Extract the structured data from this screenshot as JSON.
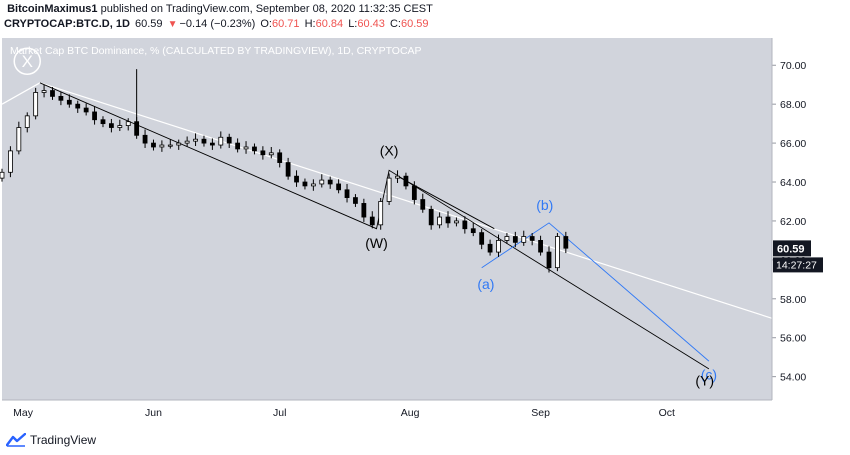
{
  "header": {
    "author": "BitcoinMaximus1",
    "published": "published on TradingView.com, September 08, 2020 11:32:35 CEST",
    "symbol": "CRYPTOCAP:BTC.D, 1D",
    "price": "60.59",
    "change_icon": "down-triangle",
    "change": "−0.14 (−0.23%)",
    "open_label": "O:",
    "open": "60.71",
    "high_label": "H:",
    "high": "60.84",
    "low_label": "L:",
    "low": "60.43",
    "close_label": "C:",
    "close": "60.59"
  },
  "footer": {
    "brand": "TradingView",
    "logo_icon": "tradingview-logo-icon"
  },
  "colors": {
    "plot_bg": "#d1d4dc",
    "candle": "#000000",
    "wave_black": "#000000",
    "wave_blue": "#3179f5",
    "trend_white": "#ffffff",
    "price_label_bg": "#131722",
    "header_red": "#ef5350"
  },
  "chart_data": {
    "type": "candlestick",
    "title": "Market Cap BTC Dominance, % (CALCULATED BY TRADINGVIEW), 1D, CRYPTOCAP",
    "xlabel": "",
    "ylabel": "",
    "y_axis_side": "right",
    "ylim": [
      52.8,
      71.4
    ],
    "y_ticks": [
      "70.00",
      "68.00",
      "66.00",
      "64.00",
      "62.00",
      "60.00",
      "58.00",
      "56.00",
      "54.00"
    ],
    "x_ticks": [
      "May",
      "Jun",
      "Jul",
      "Aug",
      "Sep",
      "Oct"
    ],
    "x_range": [
      "2020-04-26",
      "2020-10-26"
    ],
    "current_price_label": "60.59",
    "countdown_label": "14:27:27",
    "grid": false,
    "close_series": {
      "x": [
        "2020-04-26",
        "2020-04-28",
        "2020-04-30",
        "2020-05-02",
        "2020-05-04",
        "2020-05-06",
        "2020-05-08",
        "2020-05-10",
        "2020-05-12",
        "2020-05-14",
        "2020-05-16",
        "2020-05-18",
        "2020-05-20",
        "2020-05-22",
        "2020-05-24",
        "2020-05-26",
        "2020-05-28",
        "2020-05-30",
        "2020-06-01",
        "2020-06-03",
        "2020-06-05",
        "2020-06-07",
        "2020-06-09",
        "2020-06-11",
        "2020-06-13",
        "2020-06-15",
        "2020-06-17",
        "2020-06-19",
        "2020-06-21",
        "2020-06-23",
        "2020-06-25",
        "2020-06-27",
        "2020-06-29",
        "2020-07-01",
        "2020-07-03",
        "2020-07-05",
        "2020-07-07",
        "2020-07-09",
        "2020-07-11",
        "2020-07-13",
        "2020-07-15",
        "2020-07-17",
        "2020-07-19",
        "2020-07-21",
        "2020-07-23",
        "2020-07-25",
        "2020-07-27",
        "2020-07-29",
        "2020-07-31",
        "2020-08-02",
        "2020-08-04",
        "2020-08-06",
        "2020-08-08",
        "2020-08-10",
        "2020-08-12",
        "2020-08-14",
        "2020-08-16",
        "2020-08-18",
        "2020-08-20",
        "2020-08-22",
        "2020-08-24",
        "2020-08-26",
        "2020-08-28",
        "2020-08-30",
        "2020-09-01",
        "2020-09-03",
        "2020-09-05",
        "2020-09-07"
      ],
      "y": [
        64.5,
        65.6,
        66.8,
        67.4,
        68.6,
        68.7,
        68.4,
        68.2,
        68.0,
        67.8,
        67.6,
        67.2,
        67.0,
        66.8,
        66.9,
        67.1,
        66.4,
        66.0,
        65.8,
        65.9,
        65.9,
        66.0,
        66.1,
        66.2,
        66.0,
        65.9,
        66.3,
        66.0,
        65.7,
        65.8,
        65.6,
        65.4,
        65.5,
        65.0,
        64.3,
        64.0,
        63.8,
        63.9,
        64.1,
        63.9,
        63.6,
        63.2,
        62.9,
        62.2,
        61.8,
        63.0,
        64.2,
        64.3,
        63.8,
        63.1,
        62.6,
        61.8,
        62.2,
        61.9,
        62.0,
        61.6,
        61.4,
        60.8,
        60.4,
        61.0,
        61.2,
        60.9,
        61.2,
        61.0,
        60.4,
        59.6,
        61.2,
        60.6
      ]
    },
    "spike_high": {
      "x": "2020-05-28",
      "y": 69.8
    },
    "annotations": {
      "wave_labels": [
        {
          "text": "X",
          "x": "2020-05-02",
          "y": 69.95,
          "color": "white",
          "style": "circled"
        },
        {
          "text": "(W)",
          "x": "2020-07-24",
          "y": 60.6,
          "color": "black"
        },
        {
          "text": "(X)",
          "x": "2020-07-27",
          "y": 65.35,
          "color": "black"
        },
        {
          "text": "(a)",
          "x": "2020-08-19",
          "y": 58.5,
          "color": "blue"
        },
        {
          "text": "(b)",
          "x": "2020-09-02",
          "y": 62.55,
          "color": "blue"
        },
        {
          "text": "(c)",
          "x": "2020-10-11",
          "y": 53.85,
          "color": "blue"
        },
        {
          "text": "(Y)",
          "x": "2020-10-10",
          "y": 53.55,
          "color": "black"
        }
      ],
      "trend_lines": [
        {
          "name": "upper-trendline",
          "color": "white",
          "points": [
            [
              "2020-04-26",
              68.0
            ],
            [
              "2020-05-05",
              69.1
            ],
            [
              "2020-10-26",
              57.0
            ]
          ]
        },
        {
          "name": "w-x-y-channel",
          "color": "black",
          "points": [
            [
              "2020-05-05",
              69.1
            ],
            [
              "2020-07-24",
              61.6
            ],
            [
              "2020-07-27",
              64.6
            ],
            [
              "2020-10-11",
              54.4
            ]
          ]
        },
        {
          "name": "abc-correction",
          "color": "blue",
          "points": [
            [
              "2020-08-18",
              59.6
            ],
            [
              "2020-09-03",
              61.9
            ],
            [
              "2020-10-11",
              54.8
            ]
          ]
        },
        {
          "name": "x-to-b-line",
          "color": "black",
          "points": [
            [
              "2020-07-29",
              64.3
            ],
            [
              "2020-08-21",
              61.6
            ]
          ]
        }
      ]
    }
  }
}
